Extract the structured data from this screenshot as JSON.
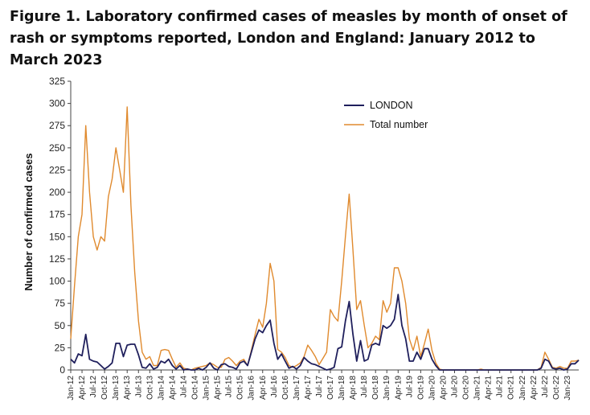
{
  "title": "Figure 1. Laboratory confirmed cases of measles by month of onset of rash or symptoms reported, London and England: January 2012 to March 2023",
  "chart_data": {
    "type": "line",
    "title": "Figure 1. Laboratory confirmed cases of measles by month of onset of rash or symptoms reported, London and England: January 2012 to March 2023",
    "xlabel": "",
    "ylabel": "Number of confirmed cases",
    "ylim": [
      0,
      325
    ],
    "yticks": [
      0,
      25,
      50,
      75,
      100,
      125,
      150,
      175,
      200,
      225,
      250,
      275,
      300,
      325
    ],
    "xtick_labels": [
      "Jan-12",
      "Apr-12",
      "Jul-12",
      "Oct-12",
      "Jan-13",
      "Apr-13",
      "Jul-13",
      "Oct-13",
      "Jan-14",
      "Apr-14",
      "Jul-14",
      "Oct-14",
      "Jan-15",
      "Apr-15",
      "Jul-15",
      "Oct-15",
      "Jan-16",
      "Apr-16",
      "Jul-16",
      "Oct-16",
      "Jan-17",
      "Apr-17",
      "Jul-17",
      "Oct-17",
      "Jan-18",
      "Apr-18",
      "Jul-18",
      "Oct-18",
      "Jan-19",
      "Apr-19",
      "Jul-19",
      "Oct-19",
      "Jan-20",
      "Apr-20",
      "Jul-20",
      "Oct-20",
      "Jan-21",
      "Apr-21",
      "Jul-21",
      "Oct-21",
      "Jan-22",
      "Apr-22",
      "Jul-22",
      "Oct-22",
      "Jan-23"
    ],
    "grid": false,
    "legend_position": "top-right",
    "series": [
      {
        "name": "LONDON",
        "color": "#1f1f5c",
        "values": [
          12,
          8,
          18,
          16,
          40,
          12,
          10,
          9,
          5,
          1,
          4,
          8,
          30,
          30,
          15,
          28,
          29,
          29,
          17,
          3,
          2,
          7,
          1,
          3,
          10,
          8,
          12,
          5,
          1,
          5,
          0,
          1,
          0,
          0,
          2,
          0,
          3,
          8,
          2,
          0,
          6,
          7,
          4,
          3,
          1,
          8,
          10,
          5,
          20,
          35,
          45,
          42,
          50,
          56,
          30,
          12,
          18,
          10,
          2,
          4,
          1,
          5,
          14,
          10,
          7,
          6,
          4,
          2,
          0,
          1,
          3,
          24,
          26,
          55,
          77,
          40,
          10,
          33,
          10,
          12,
          28,
          30,
          28,
          50,
          47,
          50,
          57,
          85,
          50,
          35,
          10,
          10,
          20,
          12,
          24,
          24,
          12,
          5,
          0,
          0,
          0,
          0,
          0,
          0,
          0,
          0,
          0,
          0,
          0,
          0,
          0,
          0,
          0,
          0,
          0,
          0,
          0,
          0,
          0,
          0,
          0,
          0,
          0,
          0,
          0,
          2,
          12,
          10,
          2,
          1,
          2,
          0,
          1,
          7,
          7,
          11
        ]
      },
      {
        "name": "Total number",
        "color": "#e08a2e",
        "values": [
          35,
          95,
          150,
          175,
          275,
          200,
          150,
          135,
          150,
          145,
          195,
          215,
          250,
          225,
          200,
          296,
          185,
          110,
          55,
          20,
          12,
          15,
          5,
          5,
          22,
          23,
          22,
          12,
          3,
          8,
          2,
          1,
          0,
          2,
          3,
          4,
          5,
          8,
          6,
          3,
          3,
          12,
          14,
          10,
          5,
          10,
          12,
          5,
          22,
          40,
          57,
          48,
          75,
          120,
          100,
          23,
          20,
          14,
          5,
          3,
          5,
          8,
          15,
          28,
          22,
          15,
          6,
          13,
          20,
          68,
          60,
          55,
          100,
          150,
          198,
          135,
          68,
          78,
          50,
          25,
          30,
          38,
          34,
          78,
          65,
          75,
          115,
          115,
          100,
          75,
          35,
          22,
          38,
          15,
          30,
          46,
          22,
          8,
          1,
          0,
          0,
          0,
          0,
          0,
          0,
          0,
          0,
          0,
          0,
          1,
          0,
          0,
          0,
          0,
          0,
          0,
          0,
          0,
          0,
          0,
          0,
          0,
          0,
          0,
          0,
          3,
          20,
          12,
          3,
          2,
          4,
          2,
          2,
          10,
          10,
          11
        ]
      }
    ]
  }
}
